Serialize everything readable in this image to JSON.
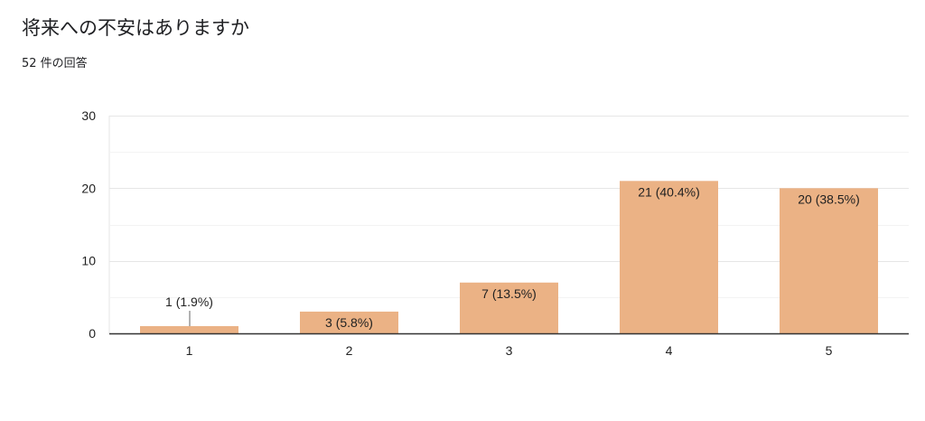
{
  "question": {
    "title": "将来への不安はありますか",
    "response_count": "52 件の回答"
  },
  "chart_data": {
    "type": "bar",
    "title": "将来への不安はありますか",
    "categories": [
      "1",
      "2",
      "3",
      "4",
      "5"
    ],
    "values": [
      1,
      3,
      7,
      21,
      20
    ],
    "value_labels": [
      "1 (1.9%)",
      "3 (5.8%)",
      "7 (13.5%)",
      "21 (40.4%)",
      "20 (38.5%)"
    ],
    "ylim": [
      0,
      30
    ],
    "yticks": [
      "0",
      "10",
      "20",
      "30"
    ],
    "ytick_values": [
      0,
      10,
      20,
      30
    ],
    "xlabel": "",
    "ylabel": "",
    "grid": true,
    "bar_color": "#ebb285",
    "gridline_color": "#e6e6e6",
    "axis_color": "#333333"
  }
}
